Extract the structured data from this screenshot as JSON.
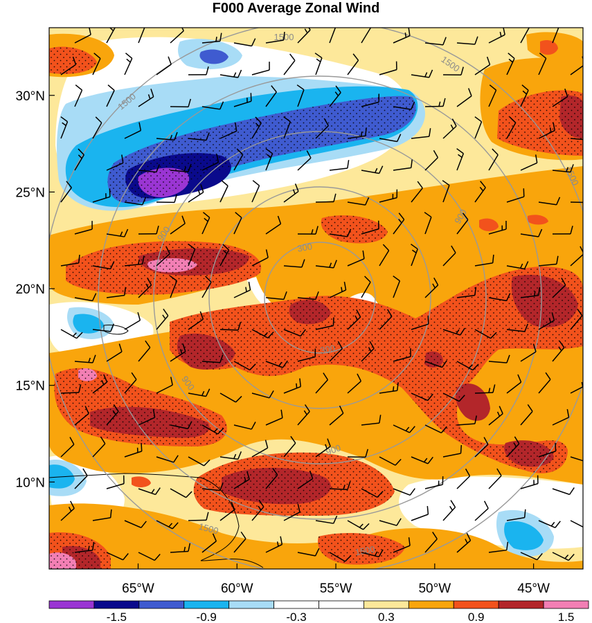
{
  "title": "F000 Average Zonal Wind",
  "map": {
    "lat_ticks": [
      {
        "value": 30,
        "label": "30°N"
      },
      {
        "value": 25,
        "label": "25°N"
      },
      {
        "value": 20,
        "label": "20°N"
      },
      {
        "value": 15,
        "label": "15°N"
      },
      {
        "value": 10,
        "label": "10°N"
      }
    ],
    "lon_ticks": [
      {
        "value": -65,
        "label": "65°W"
      },
      {
        "value": -60,
        "label": "60°W"
      },
      {
        "value": -55,
        "label": "55°W"
      },
      {
        "value": -50,
        "label": "50°W"
      },
      {
        "value": -45,
        "label": "45°W"
      }
    ],
    "lon_range": [
      -69.5,
      -42.5
    ],
    "lat_range": [
      5.5,
      33.5
    ],
    "range_ring_labels": [
      "300",
      "300",
      "900",
      "900",
      "900",
      "900",
      "1500",
      "1500",
      "1500",
      "1500",
      "1500",
      "1500"
    ],
    "stippling": true,
    "wind_barbs": true,
    "coastlines": true
  },
  "colorbar": {
    "labels": [
      "-1.5",
      "-0.9",
      "-0.3",
      "0.3",
      "0.9",
      "1.5"
    ],
    "colors": [
      "#9a35d3",
      "#0a0a8c",
      "#3f5bd0",
      "#1ab4ef",
      "#a8dcf6",
      "#ffffff",
      "#ffffff",
      "#fde89a",
      "#f9a50c",
      "#f2521c",
      "#b3262a",
      "#f27fb4"
    ]
  }
}
